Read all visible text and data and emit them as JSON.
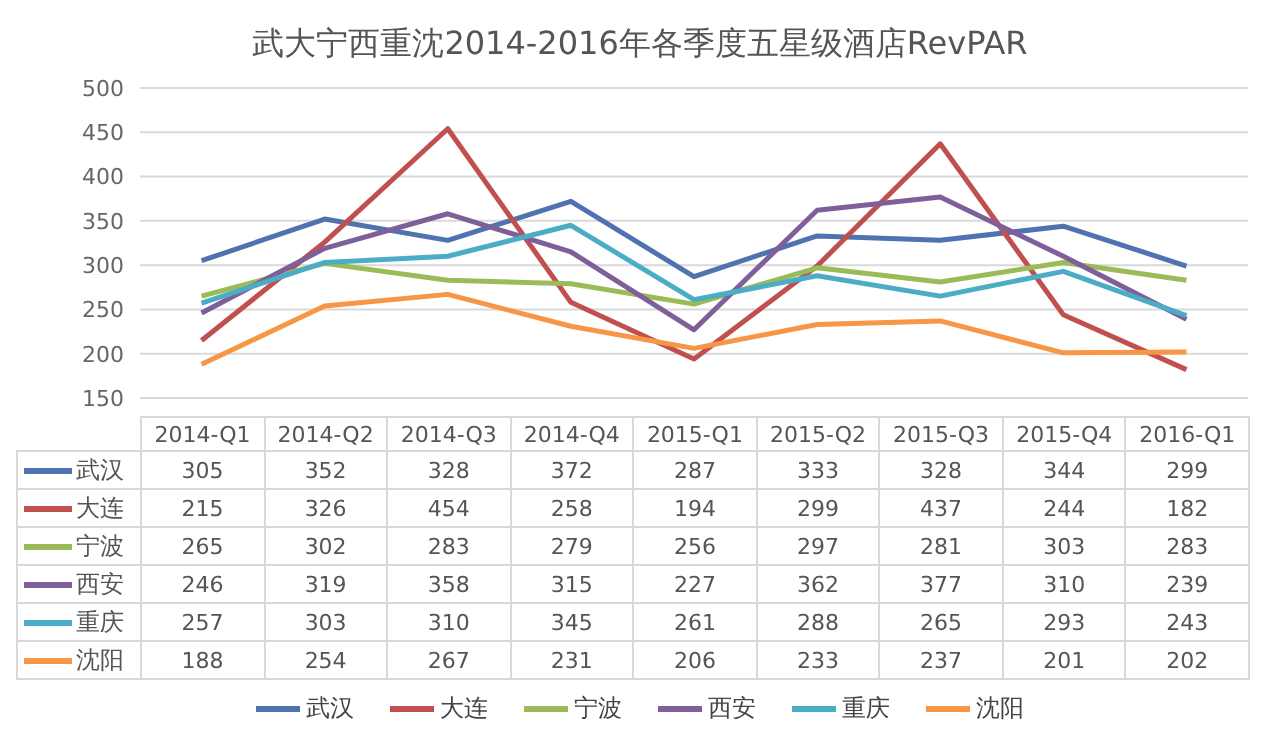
{
  "chart_data": {
    "type": "line",
    "title": "武大宁西重沈2014-2016年各季度五星级酒店RevPAR",
    "categories": [
      "2014-Q1",
      "2014-Q2",
      "2014-Q3",
      "2014-Q4",
      "2015-Q1",
      "2015-Q2",
      "2015-Q3",
      "2015-Q4",
      "2016-Q1"
    ],
    "series": [
      {
        "name": "武汉",
        "color": "#4f72b0",
        "values": [
          305,
          352,
          328,
          372,
          287,
          333,
          328,
          344,
          299
        ]
      },
      {
        "name": "大连",
        "color": "#c0504d",
        "values": [
          215,
          326,
          454,
          258,
          194,
          299,
          437,
          244,
          182
        ]
      },
      {
        "name": "宁波",
        "color": "#9bbb59",
        "values": [
          265,
          302,
          283,
          279,
          256,
          297,
          281,
          303,
          283
        ]
      },
      {
        "name": "西安",
        "color": "#7e5f9a",
        "values": [
          246,
          319,
          358,
          315,
          227,
          362,
          377,
          310,
          239
        ]
      },
      {
        "name": "重庆",
        "color": "#4bacc6",
        "values": [
          257,
          303,
          310,
          345,
          261,
          288,
          265,
          293,
          243
        ]
      },
      {
        "name": "沈阳",
        "color": "#f79646",
        "values": [
          188,
          254,
          267,
          231,
          206,
          233,
          237,
          201,
          202
        ]
      }
    ],
    "ylim": [
      150,
      500
    ],
    "yticks": [
      150,
      200,
      250,
      300,
      350,
      400,
      450,
      500
    ],
    "grid": "y",
    "legend": "bottom",
    "marker": "none",
    "data_labels": true,
    "tick_labels": "y"
  }
}
